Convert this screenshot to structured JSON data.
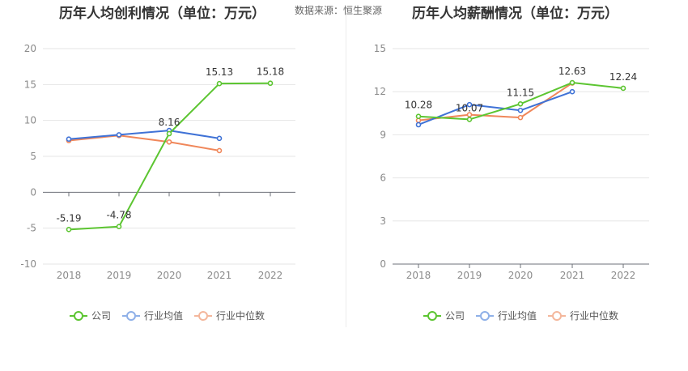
{
  "source_text": "数据来源：恒生聚源",
  "legend": {
    "items": [
      {
        "label": "公司",
        "color": "#5cc531"
      },
      {
        "label": "行业均值",
        "color": "#8fb0e8"
      },
      {
        "label": "行业中位数",
        "color": "#f4b79c"
      }
    ]
  },
  "chart_data": [
    {
      "type": "line",
      "title": "历年人均创利情况（单位：万元）",
      "categories": [
        "2018",
        "2019",
        "2020",
        "2021",
        "2022"
      ],
      "ylim": [
        -10,
        20
      ],
      "yticks": [
        -10,
        -5,
        0,
        5,
        10,
        15,
        20
      ],
      "grid": true,
      "legend": "bottom",
      "series": [
        {
          "name": "公司",
          "color": "#5cc531",
          "values": [
            -5.19,
            -4.78,
            8.16,
            15.13,
            15.18
          ]
        },
        {
          "name": "行业均值",
          "color": "#3f72d6",
          "values": [
            7.4,
            8.0,
            8.6,
            7.5,
            null
          ]
        },
        {
          "name": "行业中位数",
          "color": "#f0875a",
          "values": [
            7.2,
            7.9,
            7.0,
            5.8,
            null
          ]
        }
      ],
      "data_labels": [
        {
          "text": "-5.19",
          "x": "2018",
          "y": -5.19
        },
        {
          "text": "-4.78",
          "x": "2019",
          "y": -4.78
        },
        {
          "text": "8.16",
          "x": "2020",
          "y": 8.16
        },
        {
          "text": "15.13",
          "x": "2021",
          "y": 15.13
        },
        {
          "text": "15.18",
          "x": "2022",
          "y": 15.18
        }
      ]
    },
    {
      "type": "line",
      "title": "历年人均薪酬情况（单位：万元）",
      "categories": [
        "2018",
        "2019",
        "2020",
        "2021",
        "2022"
      ],
      "ylim": [
        0,
        15
      ],
      "yticks": [
        0,
        3,
        6,
        9,
        12,
        15
      ],
      "grid": true,
      "legend": "bottom",
      "series": [
        {
          "name": "公司",
          "color": "#5cc531",
          "values": [
            10.28,
            10.07,
            11.15,
            12.63,
            12.24
          ]
        },
        {
          "name": "行业均值",
          "color": "#3f72d6",
          "values": [
            9.7,
            11.1,
            10.7,
            12.0,
            null
          ]
        },
        {
          "name": "行业中位数",
          "color": "#f0875a",
          "values": [
            10.0,
            10.4,
            10.2,
            12.6,
            null
          ]
        }
      ],
      "data_labels": [
        {
          "text": "10.28",
          "x": "2018",
          "y": 10.28
        },
        {
          "text": "10.07",
          "x": "2019",
          "y": 10.07
        },
        {
          "text": "11.15",
          "x": "2020",
          "y": 11.15
        },
        {
          "text": "12.63",
          "x": "2021",
          "y": 12.63
        },
        {
          "text": "12.24",
          "x": "2022",
          "y": 12.24
        }
      ]
    }
  ]
}
